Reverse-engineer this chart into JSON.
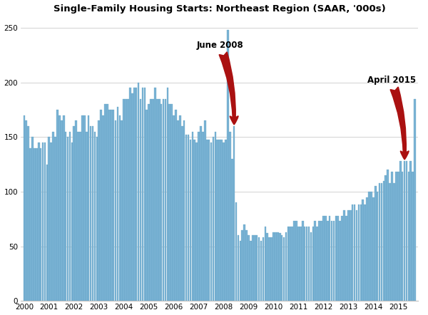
{
  "title": "Single-Family Housing Starts: Northeast Region (SAAR, '000s)",
  "bar_color": "#7ab3d4",
  "bar_edge_color": "#5a9dbf",
  "background_color": "#ffffff",
  "grid_color": "#c0c0c0",
  "ylim": [
    0,
    260
  ],
  "yticks": [
    0,
    50,
    100,
    150,
    200,
    250
  ],
  "annotation1_text": "June 2008",
  "annotation2_text": "April 2015",
  "values": [
    170,
    165,
    160,
    140,
    150,
    140,
    140,
    145,
    140,
    145,
    145,
    125,
    150,
    145,
    155,
    150,
    175,
    170,
    165,
    170,
    155,
    150,
    155,
    145,
    160,
    165,
    155,
    155,
    170,
    170,
    155,
    170,
    160,
    160,
    155,
    150,
    165,
    175,
    170,
    180,
    180,
    175,
    175,
    175,
    165,
    178,
    170,
    165,
    185,
    185,
    185,
    195,
    190,
    195,
    195,
    200,
    185,
    195,
    195,
    175,
    180,
    185,
    185,
    195,
    185,
    185,
    180,
    185,
    185,
    195,
    180,
    180,
    170,
    175,
    165,
    170,
    160,
    165,
    152,
    152,
    148,
    155,
    148,
    145,
    155,
    160,
    155,
    165,
    148,
    148,
    145,
    150,
    155,
    148,
    148,
    148,
    145,
    148,
    248,
    155,
    130,
    160,
    90,
    60,
    55,
    65,
    70,
    65,
    60,
    55,
    60,
    60,
    60,
    58,
    55,
    58,
    68,
    62,
    58,
    58,
    63,
    63,
    63,
    62,
    60,
    58,
    63,
    68,
    68,
    68,
    73,
    73,
    68,
    68,
    73,
    68,
    68,
    68,
    63,
    68,
    73,
    68,
    73,
    73,
    78,
    78,
    73,
    78,
    73,
    73,
    78,
    78,
    73,
    78,
    83,
    78,
    83,
    83,
    88,
    88,
    83,
    88,
    88,
    93,
    88,
    95,
    100,
    100,
    95,
    105,
    100,
    108,
    108,
    110,
    115,
    120,
    108,
    118,
    108,
    118,
    118,
    128,
    118,
    128,
    128,
    118,
    128,
    118,
    185
  ]
}
